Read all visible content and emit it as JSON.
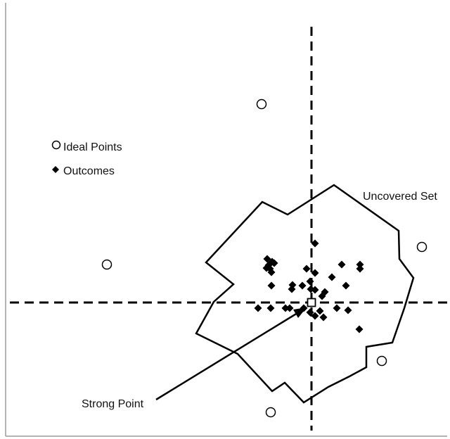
{
  "legend": {
    "ideal_points_label": "Ideal Points",
    "outcomes_label": "Outcomes"
  },
  "annotations": {
    "uncovered_set_label": "Uncovered Set",
    "strong_point_label": "Strong Point"
  },
  "colors": {
    "ink": "#000000",
    "frame": "#9a9a9a",
    "background": "#ffffff"
  },
  "icons": {
    "ideal_point": "hollow-circle-icon",
    "outcome": "filled-diamond-icon",
    "strong_point": "hollow-square-icon"
  }
}
